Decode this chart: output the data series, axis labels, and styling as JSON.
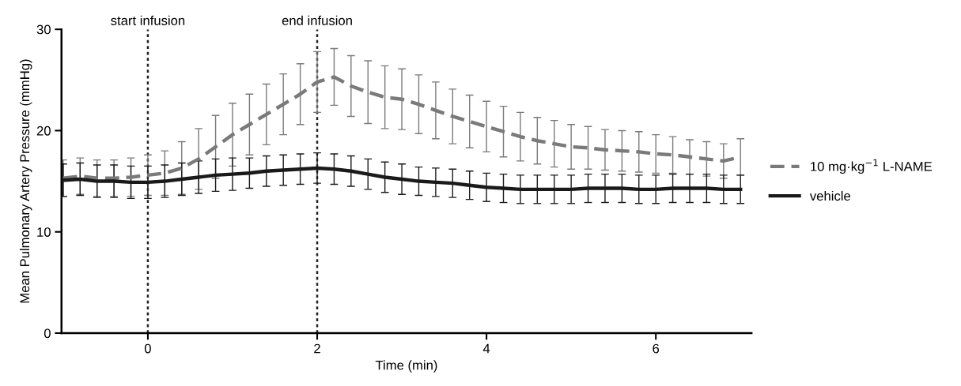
{
  "chart_data": {
    "type": "line",
    "xlabel": "Time (min)",
    "ylabel": "Mean Pulmonary Artery Pressure (mmHg)",
    "x": [
      -1.0,
      -0.8,
      -0.6,
      -0.4,
      -0.2,
      0.0,
      0.2,
      0.4,
      0.6,
      0.8,
      1.0,
      1.2,
      1.4,
      1.6,
      1.8,
      2.0,
      2.2,
      2.4,
      2.6,
      2.8,
      3.0,
      3.2,
      3.4,
      3.6,
      3.8,
      4.0,
      4.2,
      4.4,
      4.6,
      4.8,
      5.0,
      5.2,
      5.4,
      5.6,
      5.8,
      6.0,
      6.2,
      6.4,
      6.6,
      6.8,
      7.0
    ],
    "xlim": [
      -1.02,
      7.13
    ],
    "xticks": [
      0,
      2,
      4,
      6
    ],
    "ylim": [
      0,
      30
    ],
    "yticks": [
      0,
      10,
      20,
      30
    ],
    "grid": false,
    "legend": "right",
    "marker": "none",
    "series": [
      {
        "name": "10 mg·kg$^{−1}$ L-NAME",
        "color": "#7a7a7a",
        "line_style": "dashed",
        "values": [
          15.3,
          15.5,
          15.3,
          15.3,
          15.4,
          15.6,
          15.8,
          16.3,
          17.2,
          18.4,
          19.6,
          20.6,
          21.6,
          22.6,
          23.6,
          24.8,
          25.3,
          24.4,
          23.8,
          23.3,
          23.1,
          22.6,
          22.0,
          21.4,
          20.9,
          20.4,
          19.9,
          19.4,
          19.0,
          18.7,
          18.4,
          18.3,
          18.1,
          18.0,
          17.9,
          17.7,
          17.6,
          17.4,
          17.2,
          17.0,
          17.4
        ],
        "errors": [
          1.8,
          1.8,
          1.8,
          1.8,
          1.9,
          2.0,
          2.2,
          2.6,
          3.0,
          3.1,
          3.1,
          3.0,
          3.0,
          3.0,
          3.0,
          3.0,
          2.8,
          3.0,
          3.1,
          3.1,
          3.0,
          2.9,
          2.8,
          2.7,
          2.6,
          2.5,
          2.5,
          2.4,
          2.3,
          2.3,
          2.2,
          2.1,
          2.0,
          2.0,
          2.0,
          1.9,
          1.8,
          1.7,
          1.7,
          1.7,
          1.8
        ]
      },
      {
        "name": "vehicle",
        "color": "#1a1a1a",
        "line_style": "solid",
        "values": [
          15.1,
          15.2,
          15.0,
          15.0,
          14.9,
          14.9,
          15.0,
          15.2,
          15.4,
          15.6,
          15.7,
          15.8,
          16.0,
          16.1,
          16.2,
          16.3,
          16.2,
          16.0,
          15.7,
          15.4,
          15.2,
          15.0,
          14.9,
          14.8,
          14.6,
          14.4,
          14.3,
          14.2,
          14.2,
          14.2,
          14.2,
          14.3,
          14.3,
          14.3,
          14.2,
          14.2,
          14.3,
          14.3,
          14.3,
          14.2,
          14.2
        ],
        "errors": [
          1.6,
          1.6,
          1.6,
          1.6,
          1.6,
          1.6,
          1.6,
          1.6,
          1.6,
          1.6,
          1.6,
          1.5,
          1.5,
          1.5,
          1.5,
          1.5,
          1.5,
          1.5,
          1.5,
          1.5,
          1.5,
          1.4,
          1.4,
          1.4,
          1.4,
          1.4,
          1.4,
          1.4,
          1.4,
          1.4,
          1.4,
          1.4,
          1.4,
          1.4,
          1.4,
          1.4,
          1.4,
          1.4,
          1.4,
          1.4,
          1.4
        ]
      }
    ],
    "ref_lines": [
      {
        "axis": "x",
        "value": 0,
        "label": "start infusion",
        "color": "#222222",
        "line_style": "dotted"
      },
      {
        "axis": "x",
        "value": 2,
        "label": "end infusion",
        "color": "#222222",
        "line_style": "dotted"
      }
    ]
  }
}
